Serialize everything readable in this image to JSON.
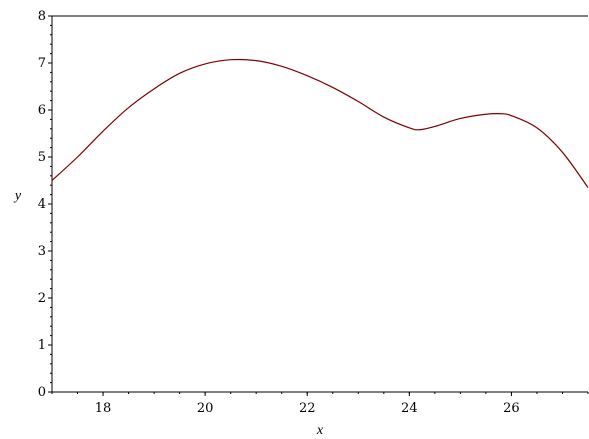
{
  "chart_data": {
    "type": "line",
    "title": "",
    "xlabel": "x",
    "ylabel": "y",
    "xlim": [
      17.0,
      27.5
    ],
    "ylim": [
      0,
      8
    ],
    "x_ticks": [
      18,
      20,
      22,
      24,
      26
    ],
    "y_ticks": [
      0,
      1,
      2,
      3,
      4,
      5,
      6,
      7,
      8
    ],
    "grid": false,
    "line_color": "#800000",
    "series": [
      {
        "x": [
          17.0,
          17.5,
          18.0,
          18.5,
          19.0,
          19.5,
          20.0,
          20.5,
          21.0,
          21.5,
          22.0,
          22.5,
          23.0,
          23.5,
          24.0,
          24.2,
          24.5,
          25.0,
          25.5,
          25.8,
          26.0,
          26.5,
          27.0,
          27.5
        ],
        "y": [
          4.5,
          5.0,
          5.55,
          6.05,
          6.45,
          6.78,
          6.98,
          7.07,
          7.05,
          6.93,
          6.73,
          6.48,
          6.18,
          5.85,
          5.62,
          5.58,
          5.65,
          5.82,
          5.91,
          5.92,
          5.88,
          5.62,
          5.1,
          4.35
        ]
      }
    ]
  }
}
